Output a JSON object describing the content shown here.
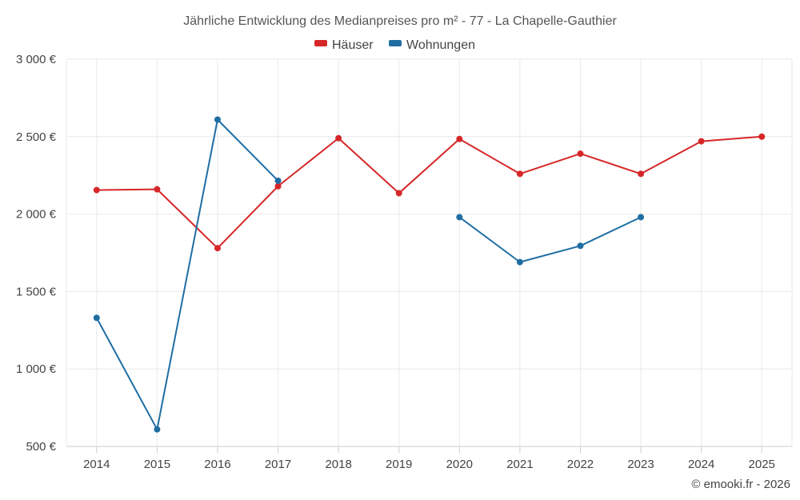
{
  "chart_data": {
    "type": "line",
    "title": "Jährliche Entwicklung des Medianpreises pro m² - 77 - La Chapelle-Gauthier",
    "categories": [
      "2014",
      "2015",
      "2016",
      "2017",
      "2018",
      "2019",
      "2020",
      "2021",
      "2022",
      "2023",
      "2024",
      "2025"
    ],
    "ylim": [
      500,
      3000
    ],
    "yticks": [
      500,
      1000,
      1500,
      2000,
      2500,
      3000
    ],
    "ytick_labels": [
      "500 €",
      "1 000 €",
      "1 500 €",
      "2 000 €",
      "2 500 €",
      "3 000 €"
    ],
    "xlabel": "",
    "ylabel": "",
    "legend_position": "top-center",
    "grid": true,
    "series": [
      {
        "name": "Häuser",
        "color": "#d62728",
        "values": [
          2155,
          2160,
          1780,
          2180,
          2490,
          2135,
          2485,
          2260,
          2390,
          2260,
          2470,
          2500
        ]
      },
      {
        "name": "Wohnungen",
        "color": "#1f6ea3",
        "values": [
          1330,
          610,
          2610,
          2215,
          null,
          null,
          1980,
          1690,
          1795,
          1980,
          null,
          null
        ]
      }
    ]
  },
  "credit": "© emooki.fr - 2026"
}
